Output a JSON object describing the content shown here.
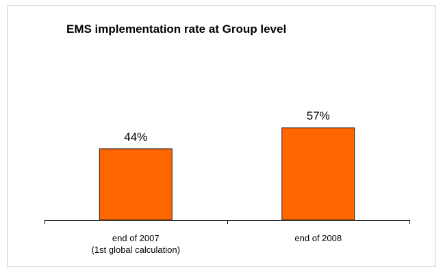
{
  "chart_data": {
    "type": "bar",
    "title": "EMS implementation rate at Group level",
    "categories": [
      "end of 2007\n(1st global calculation)",
      "end of 2008"
    ],
    "values": [
      44,
      57
    ],
    "value_labels": [
      "44%",
      "57%"
    ],
    "color": "#ff6600"
  }
}
